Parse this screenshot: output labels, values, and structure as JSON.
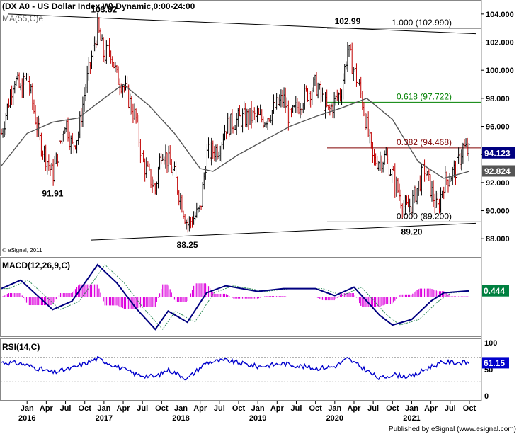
{
  "header": {
    "title": "(DX A0 - US Dollar Index,W) Dynamic,0:00-24:00",
    "ma_label": "MA(55,C)e",
    "credit": "© eSignal, 2011",
    "footer": "Published by eSignal (www.esignal.com)"
  },
  "colors": {
    "up_bar": "#000000",
    "down_bar": "#c00000",
    "ma_line": "#555555",
    "macd_line": "#000080",
    "macd_signal": "#2e8b57",
    "macd_hist": "#dd00dd",
    "rsi_line": "#0000cc",
    "fib_100": "#000000",
    "fib_618": "#008000",
    "fib_382": "#800000",
    "fib_0": "#000000",
    "trendline": "#000000",
    "axis_badge_price": "#000080",
    "axis_badge_ma": "#555555",
    "axis_badge_macd": "#008040",
    "axis_badge_rsi": "#0000cc"
  },
  "chart_data": {
    "type": "candlestick",
    "price_panel": {
      "yticks": [
        "104.000",
        "102.000",
        "100.000",
        "98.000",
        "96.000",
        "94.000",
        "92.000",
        "90.000",
        "88.000"
      ],
      "ylim": [
        86.8,
        104.9
      ],
      "last_price": "94.123",
      "last_ma": "92.824",
      "annotations": [
        {
          "text": "103.82",
          "x": "2017-01",
          "y": 103.82
        },
        {
          "text": "102.99",
          "x": "2020-03",
          "y": 102.99
        },
        {
          "text": "91.91",
          "x": "2016-05",
          "y": 91.91
        },
        {
          "text": "88.25",
          "x": "2018-02",
          "y": 88.25
        },
        {
          "text": "89.20",
          "x": "2021-01",
          "y": 89.2
        }
      ],
      "fib_levels": [
        {
          "label": "1.000 (102.990)",
          "value": 102.99,
          "color_key": "fib_100"
        },
        {
          "label": "0.618 (97.722)",
          "value": 97.722,
          "color_key": "fib_618"
        },
        {
          "label": "0.382 (94.468)",
          "value": 94.468,
          "color_key": "fib_382"
        },
        {
          "label": "0.000 (89.200)",
          "value": 89.2,
          "color_key": "fib_0"
        }
      ],
      "trendlines": [
        {
          "from": {
            "x": "2015-10",
            "y": 104.0
          },
          "to": {
            "x": "2021-11",
            "y": 102.6
          }
        },
        {
          "from": {
            "x": "2016-11",
            "y": 87.9
          },
          "to": {
            "x": "2021-11",
            "y": 89.1
          }
        }
      ],
      "close_path": [
        {
          "x": "2015-09",
          "y": 95.5
        },
        {
          "x": "2015-11",
          "y": 99.5
        },
        {
          "x": "2015-12",
          "y": 98.5
        },
        {
          "x": "2016-01",
          "y": 99.6
        },
        {
          "x": "2016-03",
          "y": 95.0
        },
        {
          "x": "2016-05",
          "y": 92.5
        },
        {
          "x": "2016-07",
          "y": 96.5
        },
        {
          "x": "2016-08",
          "y": 94.5
        },
        {
          "x": "2016-09",
          "y": 95.5
        },
        {
          "x": "2016-10",
          "y": 98.5
        },
        {
          "x": "2016-12",
          "y": 103.0
        },
        {
          "x": "2017-01",
          "y": 101.0
        },
        {
          "x": "2017-02",
          "y": 101.5
        },
        {
          "x": "2017-03",
          "y": 99.5
        },
        {
          "x": "2017-04",
          "y": 99.0
        },
        {
          "x": "2017-06",
          "y": 96.5
        },
        {
          "x": "2017-07",
          "y": 93.5
        },
        {
          "x": "2017-09",
          "y": 91.5
        },
        {
          "x": "2017-10",
          "y": 94.5
        },
        {
          "x": "2017-12",
          "y": 92.5
        },
        {
          "x": "2018-02",
          "y": 89.0
        },
        {
          "x": "2018-04",
          "y": 90.0
        },
        {
          "x": "2018-05",
          "y": 94.0
        },
        {
          "x": "2018-07",
          "y": 94.5
        },
        {
          "x": "2018-08",
          "y": 96.0
        },
        {
          "x": "2018-10",
          "y": 96.5
        },
        {
          "x": "2018-12",
          "y": 96.7
        },
        {
          "x": "2019-02",
          "y": 96.5
        },
        {
          "x": "2019-04",
          "y": 97.5
        },
        {
          "x": "2019-05",
          "y": 98.0
        },
        {
          "x": "2019-06",
          "y": 96.5
        },
        {
          "x": "2019-08",
          "y": 98.0
        },
        {
          "x": "2019-10",
          "y": 99.0
        },
        {
          "x": "2019-12",
          "y": 97.0
        },
        {
          "x": "2020-02",
          "y": 98.5
        },
        {
          "x": "2020-03",
          "y": 101.5
        },
        {
          "x": "2020-04",
          "y": 100.0
        },
        {
          "x": "2020-05",
          "y": 98.5
        },
        {
          "x": "2020-07",
          "y": 93.5
        },
        {
          "x": "2020-09",
          "y": 93.8
        },
        {
          "x": "2020-10",
          "y": 92.5
        },
        {
          "x": "2020-12",
          "y": 90.0
        },
        {
          "x": "2021-01",
          "y": 90.5
        },
        {
          "x": "2021-03",
          "y": 93.0
        },
        {
          "x": "2021-05",
          "y": 90.0
        },
        {
          "x": "2021-06",
          "y": 92.0
        },
        {
          "x": "2021-08",
          "y": 93.0
        },
        {
          "x": "2021-09",
          "y": 94.5
        },
        {
          "x": "2021-10",
          "y": 94.1
        }
      ],
      "ma_path": [
        {
          "x": "2015-09",
          "y": 93.2
        },
        {
          "x": "2016-01",
          "y": 95.5
        },
        {
          "x": "2016-05",
          "y": 96.3
        },
        {
          "x": "2016-09",
          "y": 96.6
        },
        {
          "x": "2017-01",
          "y": 98.0
        },
        {
          "x": "2017-04",
          "y": 99.0
        },
        {
          "x": "2017-08",
          "y": 97.5
        },
        {
          "x": "2017-12",
          "y": 95.5
        },
        {
          "x": "2018-04",
          "y": 93.0
        },
        {
          "x": "2018-06",
          "y": 92.8
        },
        {
          "x": "2018-10",
          "y": 94.0
        },
        {
          "x": "2019-02",
          "y": 95.0
        },
        {
          "x": "2019-06",
          "y": 96.0
        },
        {
          "x": "2019-10",
          "y": 96.7
        },
        {
          "x": "2020-02",
          "y": 97.3
        },
        {
          "x": "2020-06",
          "y": 98.0
        },
        {
          "x": "2020-10",
          "y": 96.5
        },
        {
          "x": "2021-02",
          "y": 93.5
        },
        {
          "x": "2021-06",
          "y": 92.3
        },
        {
          "x": "2021-10",
          "y": 92.8
        }
      ]
    },
    "macd_panel": {
      "label": "MACD(12,26,9,C)",
      "last_value": "0.444",
      "path": [
        {
          "x": "2015-09",
          "y": 0.6
        },
        {
          "x": "2015-12",
          "y": 1.2
        },
        {
          "x": "2016-05",
          "y": -0.9
        },
        {
          "x": "2016-08",
          "y": -0.3
        },
        {
          "x": "2016-12",
          "y": 2.3
        },
        {
          "x": "2017-03",
          "y": 1.0
        },
        {
          "x": "2017-06",
          "y": -0.8
        },
        {
          "x": "2017-09",
          "y": -2.3
        },
        {
          "x": "2017-11",
          "y": -1.0
        },
        {
          "x": "2018-02",
          "y": -1.8
        },
        {
          "x": "2018-05",
          "y": 0.3
        },
        {
          "x": "2018-08",
          "y": 0.8
        },
        {
          "x": "2019-01",
          "y": 0.4
        },
        {
          "x": "2019-05",
          "y": 0.6
        },
        {
          "x": "2019-10",
          "y": 0.6
        },
        {
          "x": "2020-01",
          "y": 0.1
        },
        {
          "x": "2020-04",
          "y": 0.7
        },
        {
          "x": "2020-08",
          "y": -1.3
        },
        {
          "x": "2020-10",
          "y": -2.0
        },
        {
          "x": "2021-01",
          "y": -1.6
        },
        {
          "x": "2021-04",
          "y": -0.3
        },
        {
          "x": "2021-06",
          "y": 0.3
        },
        {
          "x": "2021-10",
          "y": 0.444
        }
      ]
    },
    "rsi_panel": {
      "label": "RSI(14,C)",
      "yticks": [
        "100",
        "50",
        "0"
      ],
      "ylim": [
        0,
        100
      ],
      "guides": [
        70,
        30
      ],
      "last_value": "61.15",
      "path": [
        {
          "x": "2015-09",
          "y": 62
        },
        {
          "x": "2015-12",
          "y": 60
        },
        {
          "x": "2016-05",
          "y": 45
        },
        {
          "x": "2016-08",
          "y": 52
        },
        {
          "x": "2016-12",
          "y": 68
        },
        {
          "x": "2017-03",
          "y": 55
        },
        {
          "x": "2017-06",
          "y": 42
        },
        {
          "x": "2017-09",
          "y": 38
        },
        {
          "x": "2017-11",
          "y": 50
        },
        {
          "x": "2018-02",
          "y": 35
        },
        {
          "x": "2018-05",
          "y": 62
        },
        {
          "x": "2018-08",
          "y": 65
        },
        {
          "x": "2019-01",
          "y": 55
        },
        {
          "x": "2019-05",
          "y": 60
        },
        {
          "x": "2019-10",
          "y": 52
        },
        {
          "x": "2020-01",
          "y": 55
        },
        {
          "x": "2020-03",
          "y": 68
        },
        {
          "x": "2020-08",
          "y": 35
        },
        {
          "x": "2020-10",
          "y": 42
        },
        {
          "x": "2021-01",
          "y": 38
        },
        {
          "x": "2021-04",
          "y": 55
        },
        {
          "x": "2021-06",
          "y": 62
        },
        {
          "x": "2021-10",
          "y": 61.15
        }
      ]
    },
    "x_axis": {
      "month_ticks": [
        {
          "label": "Jan",
          "x": "2016-01"
        },
        {
          "label": "Apr",
          "x": "2016-04"
        },
        {
          "label": "Jul",
          "x": "2016-07"
        },
        {
          "label": "Oct",
          "x": "2016-10"
        },
        {
          "label": "Jan",
          "x": "2017-01"
        },
        {
          "label": "Apr",
          "x": "2017-04"
        },
        {
          "label": "Jul",
          "x": "2017-07"
        },
        {
          "label": "Oct",
          "x": "2017-10"
        },
        {
          "label": "Jan",
          "x": "2018-01"
        },
        {
          "label": "Apr",
          "x": "2018-04"
        },
        {
          "label": "Jul",
          "x": "2018-07"
        },
        {
          "label": "Oct",
          "x": "2018-10"
        },
        {
          "label": "Jan",
          "x": "2019-01"
        },
        {
          "label": "Apr",
          "x": "2019-04"
        },
        {
          "label": "Jul",
          "x": "2019-07"
        },
        {
          "label": "Oct",
          "x": "2019-10"
        },
        {
          "label": "Jan",
          "x": "2020-01"
        },
        {
          "label": "Apr",
          "x": "2020-04"
        },
        {
          "label": "Jul",
          "x": "2020-07"
        },
        {
          "label": "Oct",
          "x": "2020-10"
        },
        {
          "label": "Jan",
          "x": "2021-01"
        },
        {
          "label": "Apr",
          "x": "2021-04"
        },
        {
          "label": "Jul",
          "x": "2021-07"
        },
        {
          "label": "Oct",
          "x": "2021-10"
        }
      ],
      "year_ticks": [
        {
          "label": "2016",
          "x": "2016-01"
        },
        {
          "label": "2017",
          "x": "2017-01"
        },
        {
          "label": "2018",
          "x": "2018-01"
        },
        {
          "label": "2019",
          "x": "2019-01"
        },
        {
          "label": "2020",
          "x": "2020-01"
        },
        {
          "label": "2021",
          "x": "2021-01"
        }
      ]
    }
  }
}
